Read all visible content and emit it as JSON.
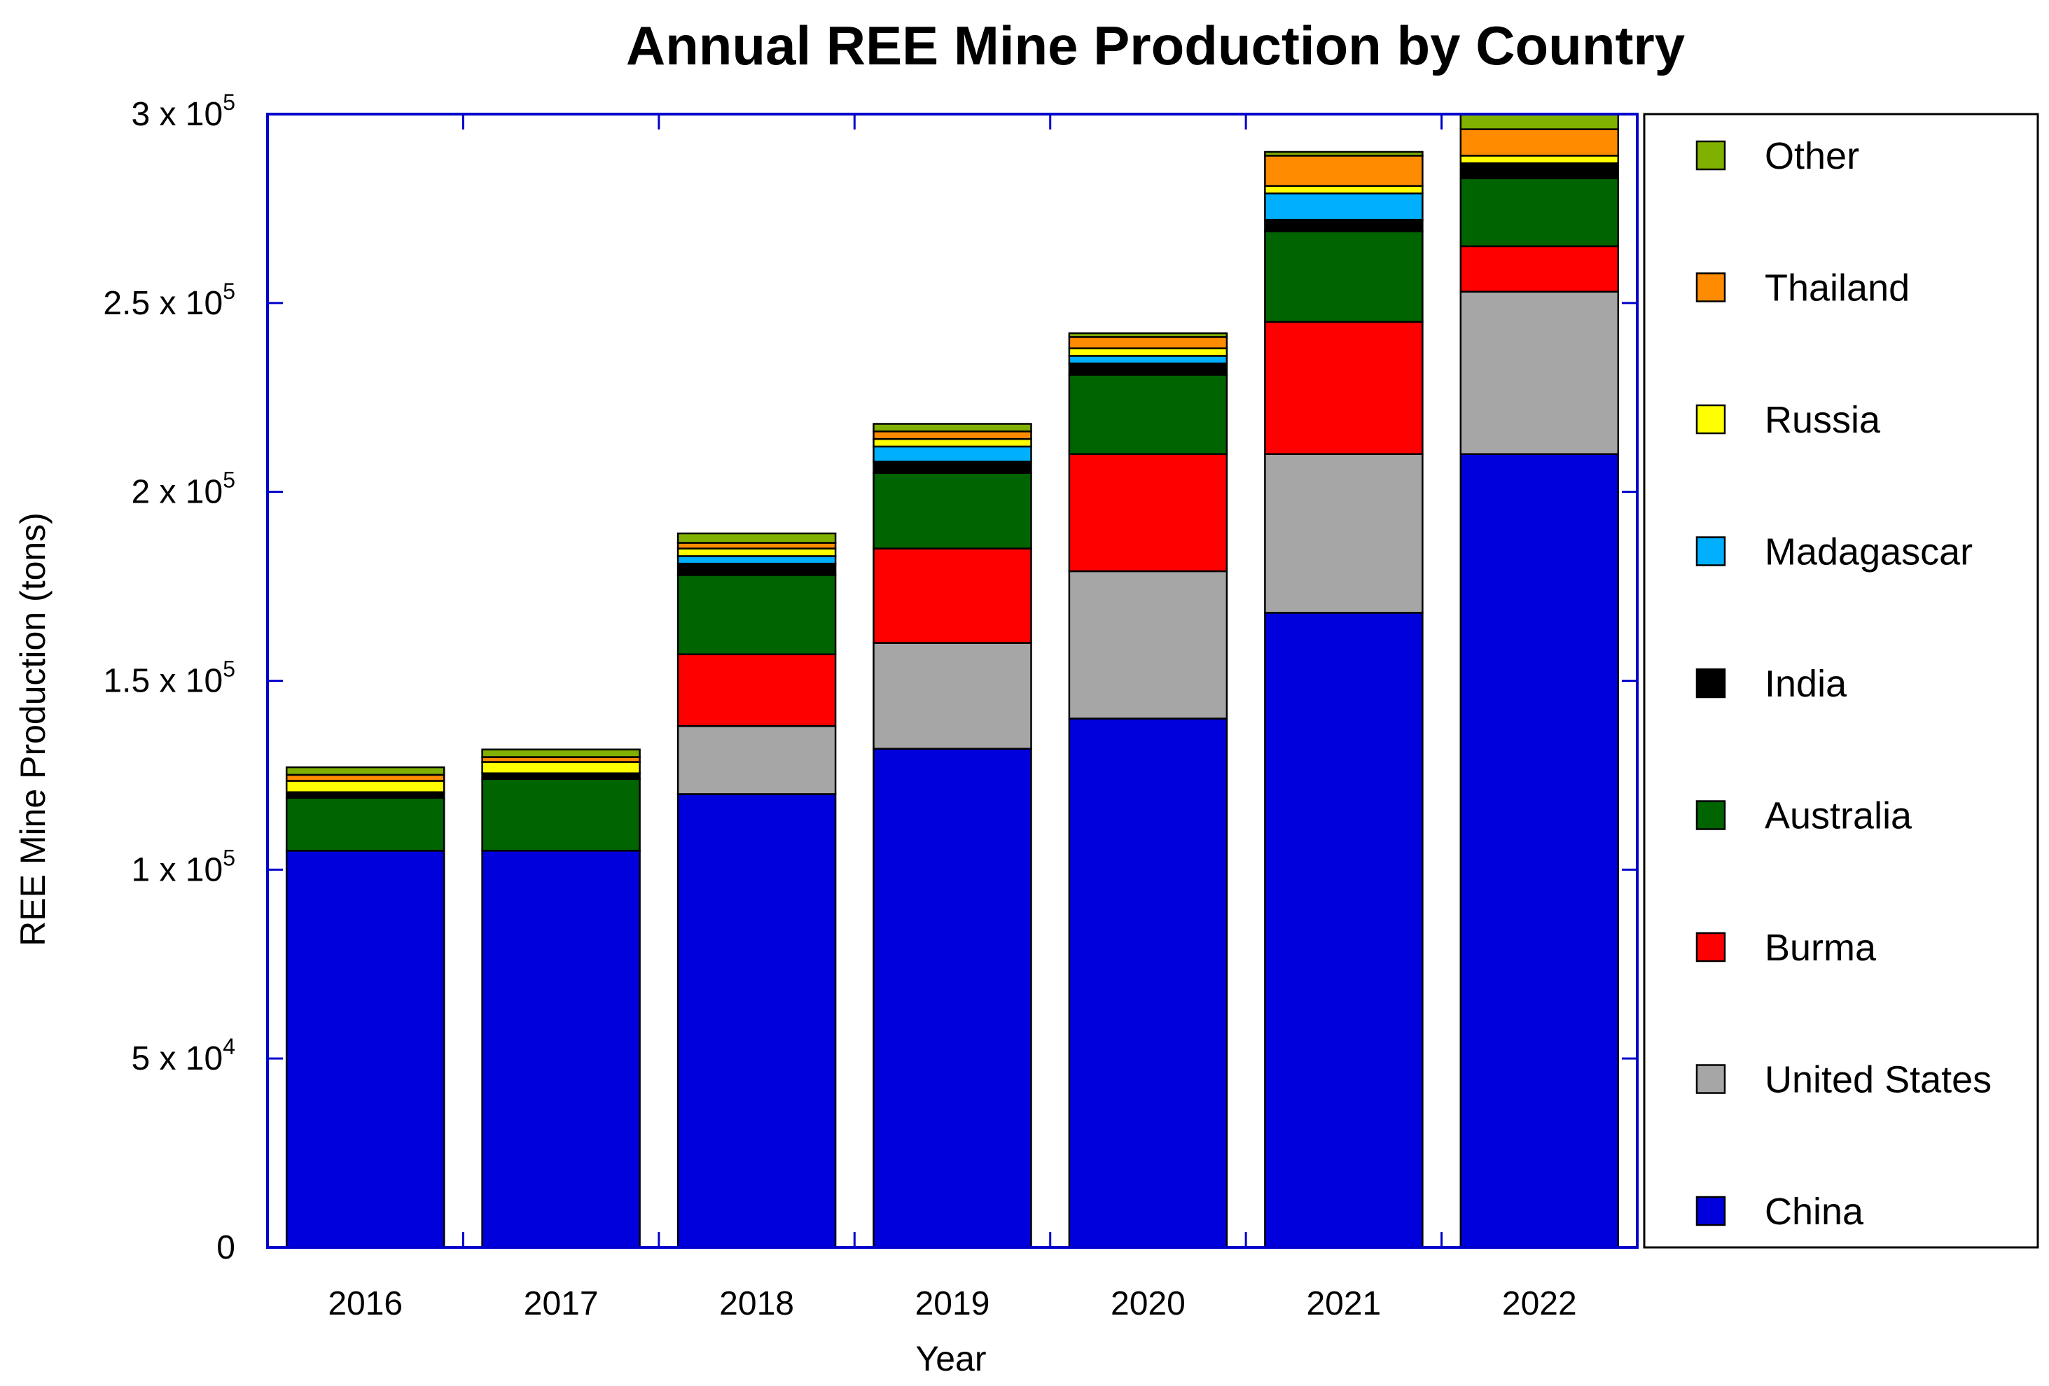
{
  "chart_data": {
    "type": "bar",
    "stacked": true,
    "title": "Annual REE Mine Production by Country",
    "xlabel": "Year",
    "ylabel": "REE Mine Production (tons)",
    "ylim": [
      0,
      300000
    ],
    "grid": false,
    "legend_position": "right",
    "categories": [
      "2016",
      "2017",
      "2018",
      "2019",
      "2020",
      "2021",
      "2022"
    ],
    "y_ticks": [
      {
        "value": 0,
        "mantissa": "0",
        "exponent": ""
      },
      {
        "value": 50000,
        "mantissa": "5 x 10",
        "exponent": "4"
      },
      {
        "value": 100000,
        "mantissa": "1 x 10",
        "exponent": "5"
      },
      {
        "value": 150000,
        "mantissa": "1.5 x 10",
        "exponent": "5"
      },
      {
        "value": 200000,
        "mantissa": "2 x 10",
        "exponent": "5"
      },
      {
        "value": 250000,
        "mantissa": "2.5 x 10",
        "exponent": "5"
      },
      {
        "value": 300000,
        "mantissa": "3 x 10",
        "exponent": "5"
      }
    ],
    "series": [
      {
        "name": "China",
        "color": "#0000dd",
        "values": [
          105000,
          105000,
          120000,
          132000,
          140000,
          168000,
          210000
        ]
      },
      {
        "name": "United States",
        "color": "#a6a6a6",
        "values": [
          0,
          0,
          18000,
          28000,
          39000,
          42000,
          43000
        ]
      },
      {
        "name": "Burma",
        "color": "#ff0000",
        "values": [
          0,
          0,
          19000,
          25000,
          31000,
          35000,
          12000
        ]
      },
      {
        "name": "Australia",
        "color": "#006400",
        "values": [
          14000,
          19000,
          21000,
          20000,
          21000,
          24000,
          18000
        ]
      },
      {
        "name": "India",
        "color": "#000000",
        "values": [
          1500,
          1500,
          3000,
          3000,
          3000,
          3000,
          4000
        ]
      },
      {
        "name": "Madagascar",
        "color": "#00b0ff",
        "values": [
          0,
          0,
          2000,
          4000,
          2000,
          7000,
          0
        ]
      },
      {
        "name": "Russia",
        "color": "#ffff00",
        "values": [
          3000,
          3000,
          2000,
          2000,
          2000,
          2000,
          2000
        ]
      },
      {
        "name": "Thailand",
        "color": "#ff8c00",
        "values": [
          1600,
          1300,
          1500,
          2000,
          3000,
          8000,
          7000
        ]
      },
      {
        "name": "Other",
        "color": "#80b000",
        "values": [
          2000,
          2000,
          2500,
          2000,
          1000,
          1000,
          4000
        ]
      }
    ],
    "legend_order": [
      "Other",
      "Thailand",
      "Russia",
      "Madagascar",
      "India",
      "Australia",
      "Burma",
      "United States",
      "China"
    ],
    "colors": {
      "axis": "#0000cc",
      "legend_border": "#000000",
      "bar_edge": "#000000"
    }
  }
}
